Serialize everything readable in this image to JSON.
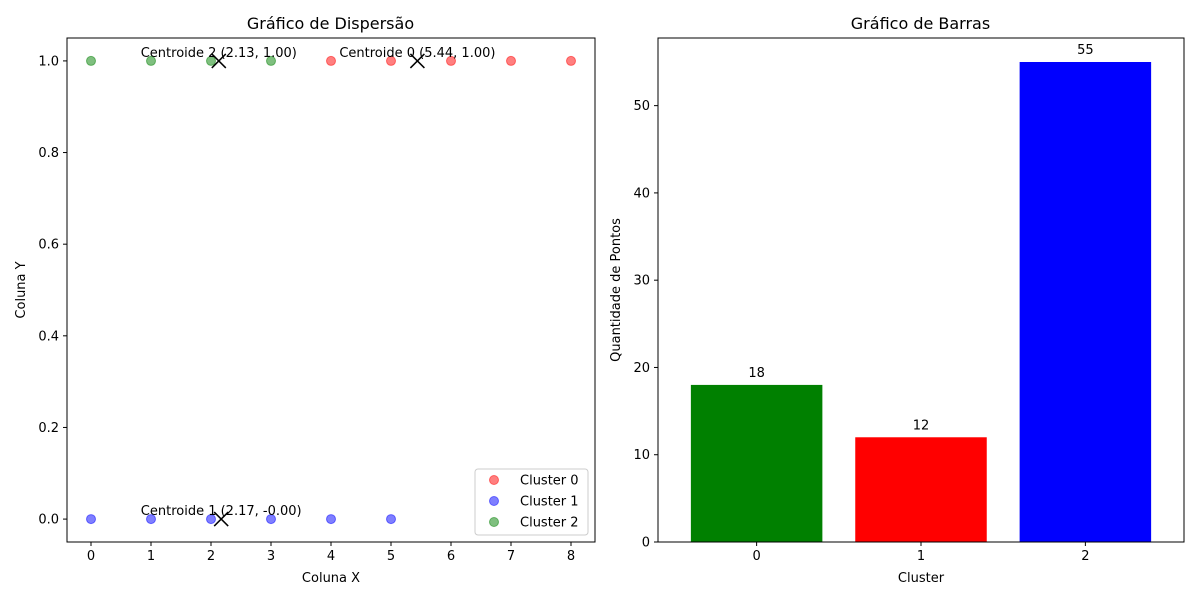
{
  "chart_data": [
    {
      "type": "scatter",
      "title": "Gráfico de Dispersão",
      "xlabel": "Coluna X",
      "ylabel": "Coluna Y",
      "xlim": [
        -0.4,
        8.4
      ],
      "ylim": [
        -0.05,
        1.05
      ],
      "xticks": [
        0,
        1,
        2,
        3,
        4,
        5,
        6,
        7,
        8
      ],
      "yticks": [
        0.0,
        0.2,
        0.4,
        0.6,
        0.8,
        1.0
      ],
      "ytick_labels": [
        "0.0",
        "0.2",
        "0.4",
        "0.6",
        "0.8",
        "1.0"
      ],
      "legend_position": "bottom-right",
      "series": [
        {
          "name": "Cluster 0",
          "color": "#ff0000",
          "points": [
            [
              4,
              1
            ],
            [
              5,
              1
            ],
            [
              6,
              1
            ],
            [
              7,
              1
            ],
            [
              8,
              1
            ]
          ]
        },
        {
          "name": "Cluster 1",
          "color": "#0000ff",
          "points": [
            [
              0,
              0
            ],
            [
              1,
              0
            ],
            [
              2,
              0
            ],
            [
              3,
              0
            ],
            [
              4,
              0
            ],
            [
              5,
              0
            ]
          ]
        },
        {
          "name": "Cluster 2",
          "color": "#008000",
          "points": [
            [
              0,
              1
            ],
            [
              1,
              1
            ],
            [
              2,
              1
            ],
            [
              3,
              1
            ]
          ]
        }
      ],
      "centroids": [
        {
          "x": 5.44,
          "y": 1.0,
          "label": "Centroide 0 (5.44, 1.00)"
        },
        {
          "x": 2.17,
          "y": 0.0,
          "label": "Centroide 1 (2.17, -0.00)"
        },
        {
          "x": 2.13,
          "y": 1.0,
          "label": "Centroide 2 (2.13, 1.00)"
        }
      ]
    },
    {
      "type": "bar",
      "title": "Gráfico de Barras",
      "xlabel": "Cluster",
      "ylabel": "Quantidade de Pontos",
      "categories": [
        "0",
        "1",
        "2"
      ],
      "values": [
        18,
        12,
        55
      ],
      "colors": [
        "#008000",
        "#ff0000",
        "#0000ff"
      ],
      "ylim": [
        0,
        57.75
      ],
      "yticks": [
        0,
        10,
        20,
        30,
        40,
        50
      ]
    }
  ]
}
